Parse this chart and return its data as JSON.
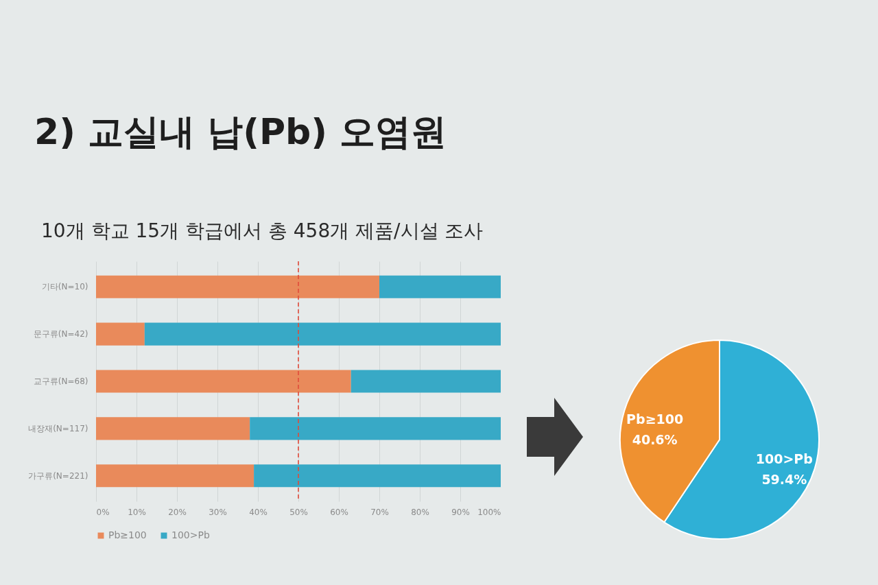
{
  "chart_data": [
    {
      "type": "bar",
      "title": "2) 교실내 납(Pb) 오염원",
      "subtitle": "10개 학교 15개 학급에서 총 458개 제품/시설 조사",
      "categories": [
        "기타(N=10)",
        "문구류(N=42)",
        "교구류(N=68)",
        "내장재(N=117)",
        "가구류(N=221)"
      ],
      "orientation": "horizontal",
      "stacked": true,
      "series": [
        {
          "name": "Pb≥100",
          "color": "#e98a5b",
          "values": [
            70,
            12,
            63,
            38,
            39
          ]
        },
        {
          "name": "100>Pb",
          "color": "#38a9c6",
          "values": [
            30,
            88,
            37,
            62,
            61
          ]
        }
      ],
      "xlim": [
        0,
        100
      ],
      "xticks": [
        {
          "value": 0,
          "label": "0%"
        },
        {
          "value": 10,
          "label": "10%"
        },
        {
          "value": 20,
          "label": "20%"
        },
        {
          "value": 30,
          "label": "30%"
        },
        {
          "value": 40,
          "label": "40%"
        },
        {
          "value": 50,
          "label": "50%"
        },
        {
          "value": 60,
          "label": "60%"
        },
        {
          "value": 70,
          "label": "70%"
        },
        {
          "value": 80,
          "label": "80%"
        },
        {
          "value": 90,
          "label": "90%"
        },
        {
          "value": 100,
          "label": "100%"
        }
      ],
      "ref_lines": [
        {
          "axis": "x",
          "value": 50,
          "color": "#e04a3a",
          "line_style": "dashed"
        }
      ],
      "grid": "x",
      "legend": "bottom"
    },
    {
      "type": "pie",
      "categories": [
        "100>Pb",
        "Pb≥100"
      ],
      "values": [
        59.4,
        40.6
      ],
      "colors": [
        "#2fb0d6",
        "#ef9130"
      ],
      "value_labels": [
        "59.4%",
        "40.6%"
      ]
    }
  ]
}
